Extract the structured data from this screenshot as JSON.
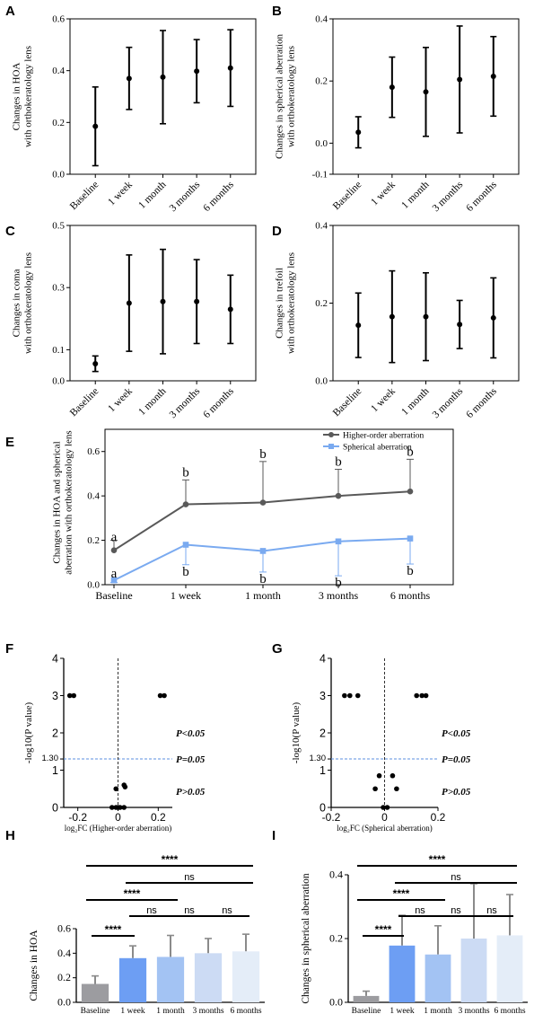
{
  "chart_data": [
    {
      "panel": "A",
      "type": "scatter",
      "ylabel": [
        "Changes in  HOA",
        "with orthokeratology lens"
      ],
      "categories": [
        "Baseline",
        "1 week",
        "1 month",
        "3 months",
        "6 months"
      ],
      "values": [
        0.185,
        0.37,
        0.375,
        0.398,
        0.41
      ],
      "errors": [
        0.152,
        0.12,
        0.18,
        0.122,
        0.148
      ],
      "ylim": [
        0,
        0.6
      ],
      "yticks": [
        0,
        0.2,
        0.4,
        0.6
      ],
      "ytick_labels": [
        "0.0",
        "0.2",
        "0.4",
        "0.6"
      ]
    },
    {
      "panel": "B",
      "type": "scatter",
      "ylabel": [
        "Changes in  spherical aberration",
        "with orthokeratology lens"
      ],
      "categories": [
        "Baseline",
        "1 week",
        "1 month",
        "3 months",
        "6 months"
      ],
      "values": [
        0.035,
        0.18,
        0.165,
        0.205,
        0.215
      ],
      "errors": [
        0.05,
        0.097,
        0.143,
        0.172,
        0.128
      ],
      "ylim": [
        -0.1,
        0.4
      ],
      "yticks": [
        -0.1,
        0,
        0.2,
        0.4
      ],
      "ytick_labels": [
        "-0.1",
        "0.0",
        "0.2",
        "0.4"
      ]
    },
    {
      "panel": "C",
      "type": "scatter",
      "ylabel": [
        "Changes in coma",
        "with orthokeratology lens"
      ],
      "categories": [
        "Baseline",
        "1 week",
        "1 month",
        "3 months",
        "6 months"
      ],
      "values": [
        0.055,
        0.25,
        0.255,
        0.255,
        0.23
      ],
      "errors": [
        0.025,
        0.155,
        0.168,
        0.135,
        0.11
      ],
      "ylim": [
        0,
        0.5
      ],
      "yticks": [
        0,
        0.1,
        0.3,
        0.5
      ],
      "ytick_labels": [
        "0.0",
        "0.1",
        "0.3",
        "0.5"
      ]
    },
    {
      "panel": "D",
      "type": "scatter",
      "ylabel": [
        "Changes in trefoil",
        "with orthokeratology lens"
      ],
      "categories": [
        "Baseline",
        "1 week",
        "1 month",
        "3 months",
        "6 months"
      ],
      "values": [
        0.143,
        0.165,
        0.165,
        0.145,
        0.162
      ],
      "errors": [
        0.083,
        0.118,
        0.113,
        0.062,
        0.103
      ],
      "ylim": [
        0,
        0.4
      ],
      "yticks": [
        0,
        0.2,
        0.4
      ],
      "ytick_labels": [
        "0.0",
        "0.2",
        "0.4"
      ]
    },
    {
      "panel": "E",
      "type": "line",
      "ylabel": [
        "Changes in  HOA and spherical",
        "aberration  with orthokeratology lens"
      ],
      "categories": [
        "Baseline",
        "1 week",
        "1 month",
        "3 months",
        "6 months"
      ],
      "series": [
        {
          "name": "Higher-order aberration",
          "color": "#595959",
          "marker": "circle",
          "values": [
            0.155,
            0.362,
            0.37,
            0.4,
            0.42
          ],
          "errors": [
            0.045,
            0.11,
            0.185,
            0.12,
            0.145
          ],
          "letters": [
            "a",
            "b",
            "b",
            "b",
            "b"
          ]
        },
        {
          "name": "Spherical aberration",
          "color": "#7aaaf0",
          "marker": "square",
          "values": [
            0.02,
            0.18,
            0.152,
            0.195,
            0.208
          ],
          "errors": [
            0.01,
            0.09,
            0.095,
            0.155,
            0.115
          ],
          "letters": [
            "a",
            "b",
            "b",
            "b",
            "b"
          ]
        }
      ],
      "ylim": [
        0,
        0.7
      ],
      "yticks": [
        0,
        0.2,
        0.4,
        0.6
      ],
      "ytick_labels": [
        "0.0",
        "0.2",
        "0.4",
        "0.6"
      ],
      "legend_position": "top-right"
    },
    {
      "panel": "F",
      "type": "scatter",
      "xlabel": "log₂FC (Higher-order aberration)",
      "ylabel": "-log10(P value)",
      "points": [
        [
          -0.24,
          3
        ],
        [
          -0.22,
          3
        ],
        [
          0.21,
          3
        ],
        [
          0.23,
          3
        ],
        [
          0.03,
          0.6
        ],
        [
          -0.01,
          0.5
        ],
        [
          0.035,
          0.55
        ],
        [
          -0.03,
          0
        ],
        [
          -0.01,
          0
        ],
        [
          0.0,
          0
        ],
        [
          0.01,
          0
        ],
        [
          0.03,
          0
        ]
      ],
      "xlim": [
        -0.27,
        0.27
      ],
      "ylim": [
        0,
        4
      ],
      "xticks": [
        -0.2,
        0,
        0.2
      ],
      "xtick_labels": [
        "-0.2",
        "0",
        "0.2"
      ],
      "yticks": [
        0,
        1,
        1.3,
        2,
        3,
        4
      ],
      "ytick_labels": [
        "0",
        "1",
        "1.30",
        "2",
        "3",
        "4"
      ],
      "threshold": 1.3,
      "annotations": [
        "P<0.05",
        "P=0.05",
        "P>0.05"
      ]
    },
    {
      "panel": "G",
      "type": "scatter",
      "xlabel": "log₂FC (Spherical aberration)",
      "ylabel": "-log10(P value)",
      "points": [
        [
          -0.15,
          3
        ],
        [
          -0.13,
          3
        ],
        [
          -0.1,
          3
        ],
        [
          0.12,
          3
        ],
        [
          0.14,
          3
        ],
        [
          0.155,
          3
        ],
        [
          -0.02,
          0.85
        ],
        [
          0.03,
          0.85
        ],
        [
          -0.035,
          0.5
        ],
        [
          0.045,
          0.5
        ],
        [
          -0.005,
          0
        ],
        [
          0.01,
          0
        ]
      ],
      "xlim": [
        -0.2,
        0.2
      ],
      "ylim": [
        0,
        4
      ],
      "xticks": [
        -0.2,
        0,
        0.2
      ],
      "xtick_labels": [
        "-0.2",
        "0",
        "0.2"
      ],
      "yticks": [
        0,
        1,
        1.3,
        2,
        3,
        4
      ],
      "ytick_labels": [
        "0",
        "1",
        "1.30",
        "2",
        "3",
        "4"
      ],
      "threshold": 1.3,
      "annotations": [
        "P<0.05",
        "P=0.05",
        "P>0.05"
      ]
    },
    {
      "panel": "H",
      "type": "bar",
      "ylabel": "Changes in HOA",
      "categories": [
        "Baseline",
        "1 week",
        "1 month",
        "3 months",
        "6 months"
      ],
      "values": [
        0.15,
        0.36,
        0.37,
        0.4,
        0.415
      ],
      "errors": [
        0.065,
        0.1,
        0.175,
        0.12,
        0.14
      ],
      "colors": [
        "#9c9ca0",
        "#6d9ef3",
        "#a3c3f3",
        "#ccdbf4",
        "#e4edf8"
      ],
      "ylim": [
        0,
        0.6
      ],
      "yticks": [
        0,
        0.2,
        0.4,
        0.6
      ],
      "ytick_labels": [
        "0.0",
        "0.2",
        "0.4",
        "0.6"
      ],
      "significance": [
        {
          "from": 0,
          "to": 4,
          "label": "****"
        },
        {
          "from": 1,
          "to": 4,
          "label": "ns"
        },
        {
          "from": 0,
          "to": 2,
          "label": "****"
        },
        {
          "from": 1,
          "to": 2,
          "label": "ns"
        },
        {
          "from": 2,
          "to": 3,
          "label": "ns"
        },
        {
          "from": 3,
          "to": 4,
          "label": "ns"
        },
        {
          "from": 0,
          "to": 1,
          "label": "****"
        }
      ]
    },
    {
      "panel": "I",
      "type": "bar",
      "ylabel": "Changes in spherical aberration",
      "categories": [
        "Baseline",
        "1 week",
        "1 month",
        "3 months",
        "6 months"
      ],
      "values": [
        0.02,
        0.178,
        0.15,
        0.2,
        0.21
      ],
      "errors": [
        0.015,
        0.095,
        0.09,
        0.172,
        0.128
      ],
      "colors": [
        "#9c9ca0",
        "#6d9ef3",
        "#a3c3f3",
        "#ccdbf4",
        "#e4edf8"
      ],
      "ylim": [
        0,
        0.4
      ],
      "yticks": [
        0,
        0.2,
        0.4
      ],
      "ytick_labels": [
        "0.0",
        "0.2",
        "0.4"
      ],
      "significance": [
        {
          "from": 0,
          "to": 4,
          "label": "****"
        },
        {
          "from": 1,
          "to": 4,
          "label": "ns"
        },
        {
          "from": 0,
          "to": 2,
          "label": "****"
        },
        {
          "from": 1,
          "to": 2,
          "label": "ns"
        },
        {
          "from": 2,
          "to": 3,
          "label": "ns"
        },
        {
          "from": 3,
          "to": 4,
          "label": "ns"
        },
        {
          "from": 0,
          "to": 1,
          "label": "****"
        }
      ]
    }
  ]
}
